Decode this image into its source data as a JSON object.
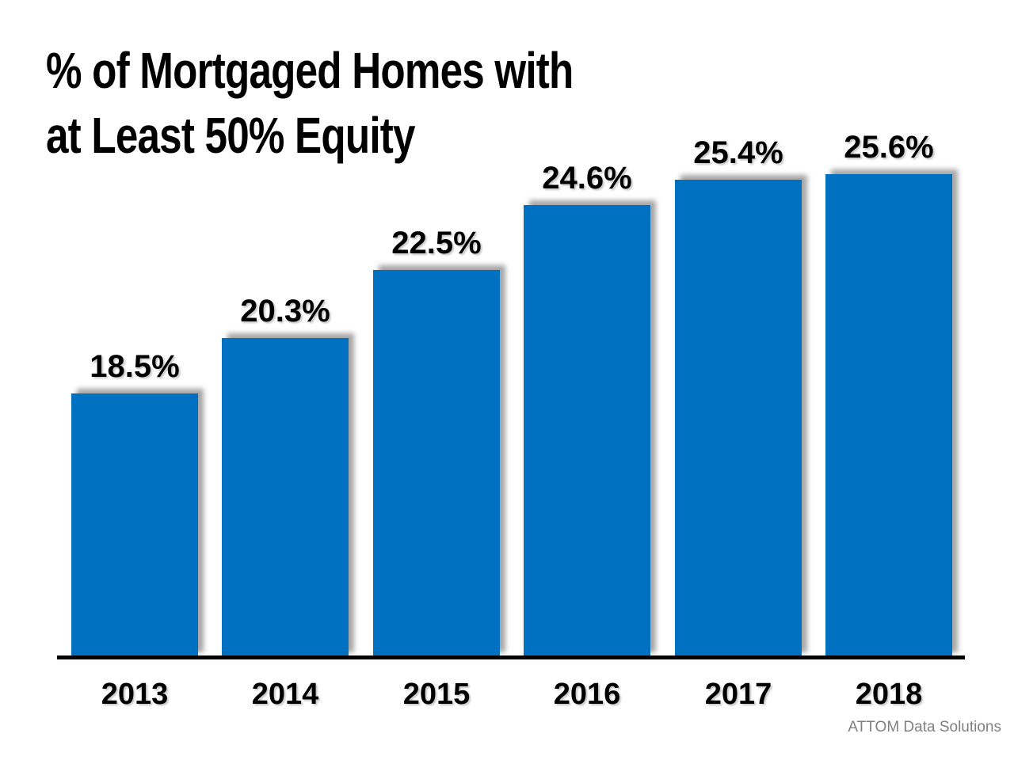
{
  "title": {
    "line1": "% of Mortgaged Homes with",
    "line2": "at Least 50% Equity"
  },
  "attribution": "ATTOM Data Solutions",
  "colors": {
    "bar": "#0070C0",
    "axis": "#000000",
    "title_text": "#000000",
    "label_text": "#000000",
    "attribution_text": "#808080",
    "background": "#FFFFFF"
  },
  "chart_data": {
    "type": "bar",
    "title": "% of Mortgaged Homes with at Least 50% Equity",
    "categories": [
      "2013",
      "2014",
      "2015",
      "2016",
      "2017",
      "2018"
    ],
    "values": [
      18.5,
      20.3,
      22.5,
      24.6,
      25.4,
      25.6
    ],
    "data_labels": [
      "18.5%",
      "20.3%",
      "22.5%",
      "24.6%",
      "25.4%",
      "25.6%"
    ],
    "xlabel": "",
    "ylabel": "",
    "ylim": [
      10,
      26
    ],
    "grid": false,
    "legend": false,
    "data_labels_shown": true,
    "baseline_note": "axis baseline starts at 10%, bars not zero-based"
  }
}
